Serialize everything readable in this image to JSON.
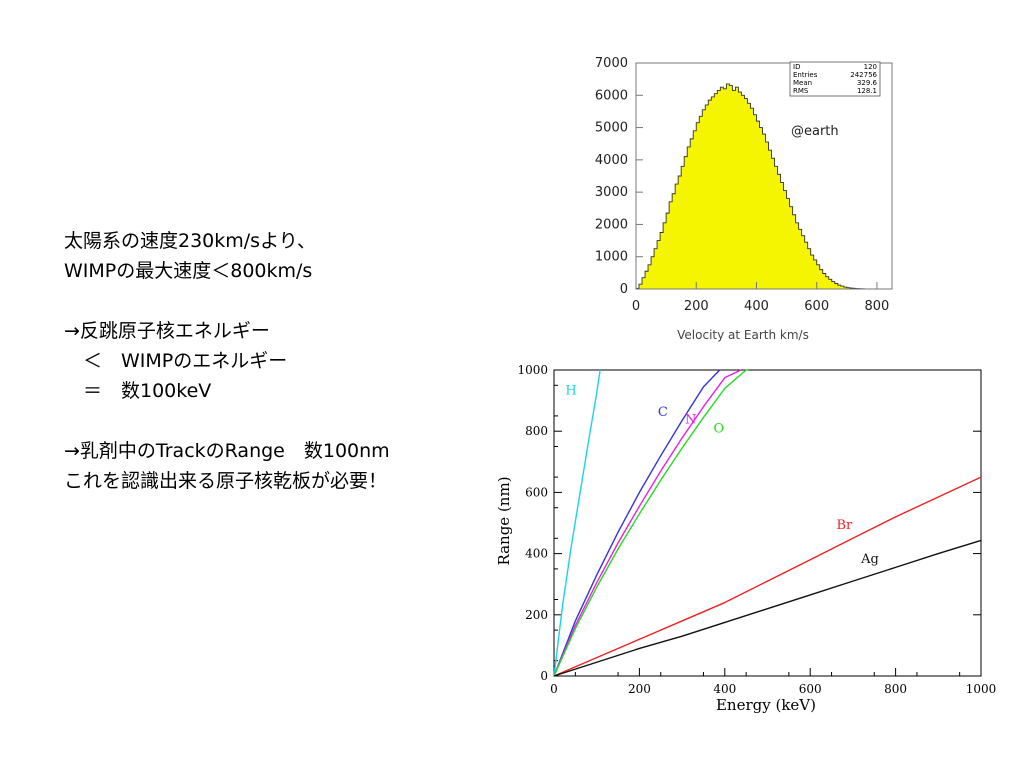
{
  "text": {
    "lines": [
      "太陽系の速度230km/sより、",
      "WIMPの最大速度＜800km/s",
      "",
      "→反跳原子核エネルギー",
      "　＜　WIMPのエネルギー",
      "　＝　数100keV",
      "",
      "→乳剤中のTrackのRange　数100nm",
      "これを認識出来る原子核乾板が必要！"
    ]
  },
  "chart_data": [
    {
      "type": "histogram",
      "title": "",
      "xlabel": "Velocity at Earth km/s",
      "ylabel": "",
      "xlim": [
        0,
        850
      ],
      "ylim": [
        0,
        7000
      ],
      "xticks": [
        0,
        200,
        400,
        600,
        800
      ],
      "yticks": [
        0,
        1000,
        2000,
        3000,
        4000,
        5000,
        6000,
        7000
      ],
      "fill_color": "#f5f500",
      "annotation": "@earth",
      "stats": [
        {
          "label": "ID",
          "value": "120"
        },
        {
          "label": "Entries",
          "value": "242756"
        },
        {
          "label": "Mean",
          "value": "329.6"
        },
        {
          "label": "RMS",
          "value": "128.1"
        }
      ],
      "bin_width": 10,
      "bins": [
        [
          0,
          20
        ],
        [
          10,
          150
        ],
        [
          20,
          350
        ],
        [
          30,
          550
        ],
        [
          40,
          750
        ],
        [
          50,
          1000
        ],
        [
          60,
          1250
        ],
        [
          70,
          1500
        ],
        [
          80,
          1750
        ],
        [
          90,
          2050
        ],
        [
          100,
          2350
        ],
        [
          110,
          2700
        ],
        [
          120,
          2950
        ],
        [
          130,
          3250
        ],
        [
          140,
          3500
        ],
        [
          150,
          3800
        ],
        [
          160,
          4100
        ],
        [
          170,
          4400
        ],
        [
          180,
          4650
        ],
        [
          190,
          4900
        ],
        [
          200,
          5150
        ],
        [
          210,
          5350
        ],
        [
          220,
          5550
        ],
        [
          230,
          5700
        ],
        [
          240,
          5850
        ],
        [
          250,
          5950
        ],
        [
          260,
          6050
        ],
        [
          270,
          6150
        ],
        [
          280,
          6250
        ],
        [
          290,
          6200
        ],
        [
          300,
          6350
        ],
        [
          310,
          6300
        ],
        [
          320,
          6150
        ],
        [
          330,
          6250
        ],
        [
          340,
          6100
        ],
        [
          350,
          6000
        ],
        [
          360,
          5900
        ],
        [
          370,
          5750
        ],
        [
          380,
          5600
        ],
        [
          390,
          5400
        ],
        [
          400,
          5200
        ],
        [
          410,
          5000
        ],
        [
          420,
          4800
        ],
        [
          430,
          4550
        ],
        [
          440,
          4300
        ],
        [
          450,
          4050
        ],
        [
          460,
          3800
        ],
        [
          470,
          3550
        ],
        [
          480,
          3300
        ],
        [
          490,
          3050
        ],
        [
          500,
          2800
        ],
        [
          510,
          2550
        ],
        [
          520,
          2300
        ],
        [
          530,
          2050
        ],
        [
          540,
          1850
        ],
        [
          550,
          1650
        ],
        [
          560,
          1450
        ],
        [
          570,
          1250
        ],
        [
          580,
          1050
        ],
        [
          590,
          900
        ],
        [
          600,
          750
        ],
        [
          610,
          600
        ],
        [
          620,
          480
        ],
        [
          630,
          380
        ],
        [
          640,
          300
        ],
        [
          650,
          230
        ],
        [
          660,
          170
        ],
        [
          670,
          120
        ],
        [
          680,
          90
        ],
        [
          690,
          60
        ],
        [
          700,
          40
        ],
        [
          710,
          30
        ],
        [
          720,
          20
        ],
        [
          730,
          12
        ],
        [
          740,
          8
        ],
        [
          750,
          5
        ],
        [
          760,
          3
        ],
        [
          770,
          1
        ]
      ]
    },
    {
      "type": "line",
      "title": "",
      "xlabel": "Energy  (keV)",
      "ylabel": "Range  (nm)",
      "xlim": [
        0,
        1000
      ],
      "ylim": [
        0,
        1000
      ],
      "xticks": [
        0,
        200,
        400,
        600,
        800,
        1000
      ],
      "yticks": [
        0,
        200,
        400,
        600,
        800,
        1000
      ],
      "series": [
        {
          "name": "H",
          "color": "#19d5e6",
          "x": [
            0,
            20,
            40,
            60,
            80,
            100,
            108
          ],
          "y": [
            0,
            230,
            420,
            590,
            760,
            925,
            1000
          ]
        },
        {
          "name": "C",
          "color": "#3333e0",
          "x": [
            0,
            50,
            100,
            150,
            200,
            250,
            300,
            350,
            388
          ],
          "y": [
            0,
            180,
            330,
            470,
            600,
            720,
            835,
            945,
            1000
          ]
        },
        {
          "name": "N",
          "color": "#ee1ee6",
          "x": [
            0,
            50,
            100,
            150,
            200,
            250,
            300,
            350,
            400,
            438
          ],
          "y": [
            0,
            165,
            305,
            435,
            555,
            670,
            778,
            880,
            975,
            1000
          ]
        },
        {
          "name": "O",
          "color": "#22dd22",
          "x": [
            0,
            50,
            100,
            150,
            200,
            250,
            300,
            350,
            400,
            450,
            455
          ],
          "y": [
            0,
            155,
            290,
            415,
            530,
            640,
            745,
            845,
            940,
            1000,
            1000
          ]
        },
        {
          "name": "Br",
          "color": "#ee2222",
          "x": [
            0,
            100,
            200,
            300,
            400,
            500,
            600,
            700,
            800,
            900,
            1000
          ],
          "y": [
            0,
            60,
            120,
            180,
            240,
            310,
            380,
            450,
            520,
            585,
            650
          ]
        },
        {
          "name": "Ag",
          "color": "#111111",
          "x": [
            0,
            100,
            200,
            300,
            400,
            500,
            600,
            700,
            800,
            900,
            1000
          ],
          "y": [
            0,
            45,
            90,
            130,
            175,
            220,
            265,
            310,
            355,
            400,
            443
          ]
        }
      ]
    }
  ]
}
